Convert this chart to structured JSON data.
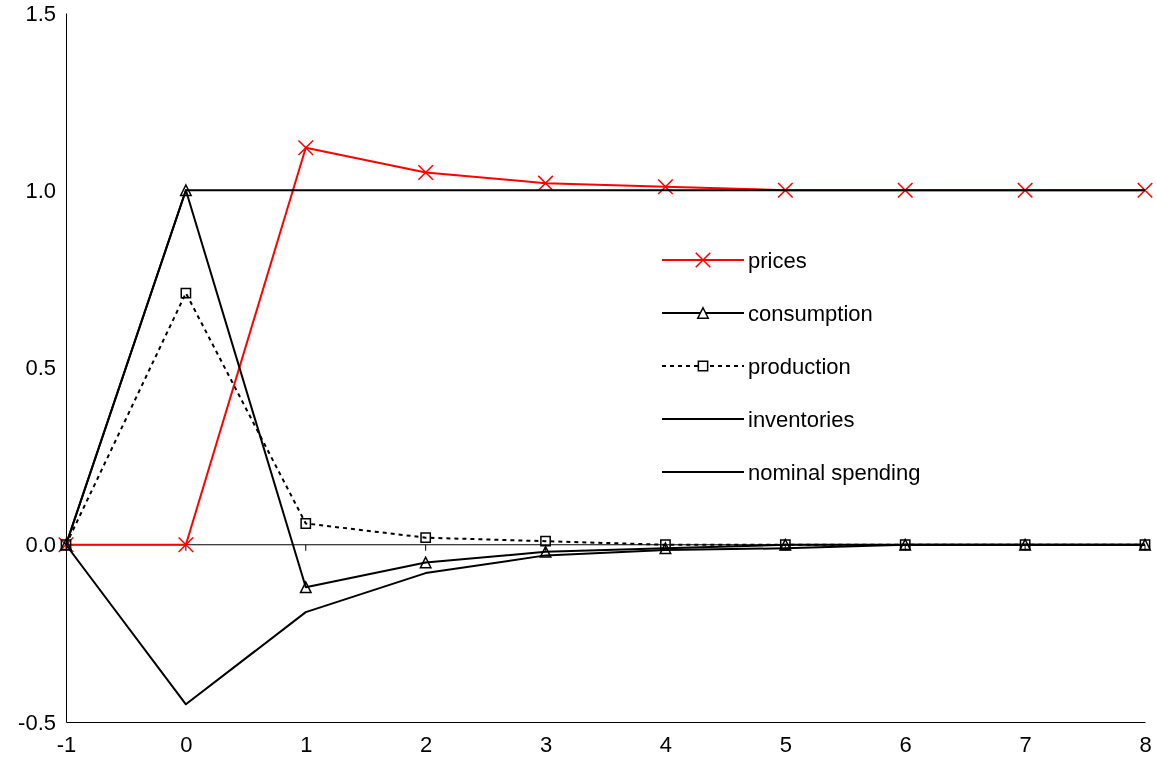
{
  "chart_data": {
    "type": "line",
    "x": [
      -1,
      0,
      1,
      2,
      3,
      4,
      5,
      6,
      7,
      8
    ],
    "xlim": [
      -1,
      8
    ],
    "xticks": [
      -1,
      0,
      1,
      2,
      3,
      4,
      5,
      6,
      7,
      8
    ],
    "ylim": [
      -0.5,
      1.5
    ],
    "yticks": [
      {
        "value": -0.5,
        "label": "-0.5"
      },
      {
        "value": 0,
        "label": "0.0"
      },
      {
        "value": 0.5,
        "label": "0.5"
      },
      {
        "value": 1,
        "label": "1.0"
      },
      {
        "value": 1.5,
        "label": "1.5"
      }
    ],
    "grid": false,
    "legend": "right",
    "ref_lines": [
      {
        "axis": "y",
        "value": 0,
        "color": "#000000"
      }
    ],
    "series": [
      {
        "name": "prices",
        "color": "#ff0000",
        "marker": "cross",
        "line_style": "solid",
        "values": [
          0,
          0,
          1.12,
          1.05,
          1.02,
          1.01,
          1.0,
          1.0,
          1.0,
          1.0
        ]
      },
      {
        "name": "consumption",
        "color": "#000000",
        "marker": "triangle",
        "line_style": "solid",
        "values": [
          0,
          1.0,
          -0.12,
          -0.05,
          -0.02,
          -0.01,
          0,
          0,
          0,
          0
        ]
      },
      {
        "name": "production",
        "color": "#000000",
        "marker": "square",
        "line_style": "dotted",
        "values": [
          0,
          0.71,
          0.06,
          0.02,
          0.01,
          0.0,
          0,
          0,
          0,
          0
        ]
      },
      {
        "name": "inventories",
        "color": "#000000",
        "marker": "none",
        "line_style": "solid",
        "values": [
          0,
          -0.45,
          -0.19,
          -0.08,
          -0.03,
          -0.015,
          -0.01,
          0,
          0,
          0
        ]
      },
      {
        "name": "nominal spending",
        "color": "#000000",
        "marker": "none",
        "line_style": "solid",
        "values": [
          0,
          1.0,
          1.0,
          1.0,
          1.0,
          1.0,
          1.0,
          1.0,
          1.0,
          1.0
        ]
      }
    ]
  }
}
